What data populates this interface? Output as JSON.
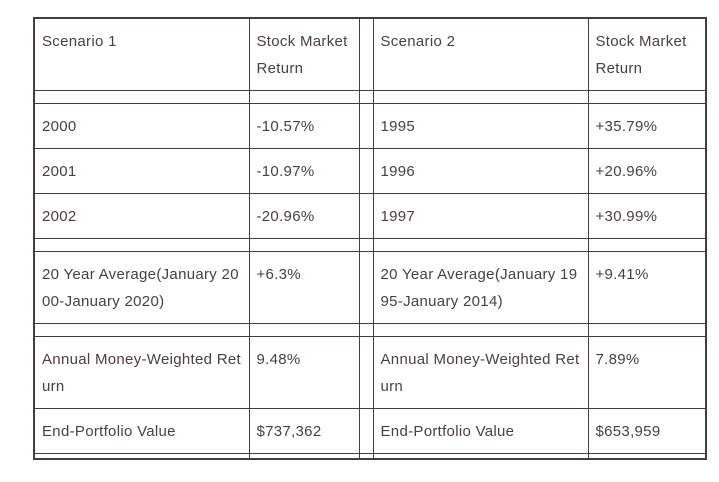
{
  "colors": {
    "text": "#4a3e43",
    "border": "#473b40",
    "background": "#ffffff"
  },
  "table": {
    "header": {
      "scenario1_title": "Scenario 1",
      "scenario1_return_header": "Stock Market Return",
      "scenario2_title": "Scenario 2",
      "scenario2_return_header": "Stock Market Return"
    },
    "rows": [
      {
        "label1": "2000",
        "value1": "-10.57%",
        "label2": "1995",
        "value2": "+35.79%"
      },
      {
        "label1": "2001",
        "value1": "-10.97%",
        "label2": "1996",
        "value2": "+20.96%"
      },
      {
        "label1": "2002",
        "value1": "-20.96%",
        "label2": "1997",
        "value2": "+30.99%"
      },
      {
        "label1": "20 Year Average(January 2000-January 2020)",
        "value1": "+6.3%",
        "label2": "20 Year Average(January 1995-January 2014)",
        "value2": "+9.41%"
      },
      {
        "label1": "Annual Money-Weighted Return",
        "value1": "9.48%",
        "label2": "Annual Money-Weighted Return",
        "value2": "7.89%"
      },
      {
        "label1": "End-Portfolio Value",
        "value1": "$737,362",
        "label2": "End-Portfolio Value",
        "value2": "$653,959"
      }
    ]
  }
}
